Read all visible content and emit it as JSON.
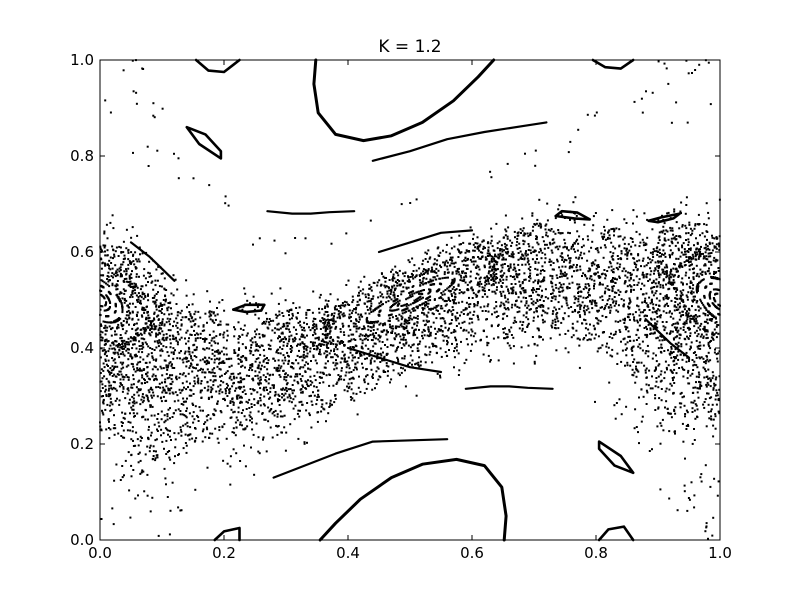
{
  "chart_data": {
    "type": "scatter",
    "title": "K = 1.2",
    "xlabel": "",
    "ylabel": "",
    "xlim": [
      0.0,
      1.0
    ],
    "ylim": [
      0.0,
      1.0
    ],
    "x_ticks": [
      "0.0",
      "0.2",
      "0.4",
      "0.6",
      "0.8",
      "1.0"
    ],
    "y_ticks": [
      "0.0",
      "0.2",
      "0.4",
      "0.6",
      "0.8",
      "1.0"
    ],
    "grid": false,
    "legend": "none",
    "marker_color": "#000000",
    "map": "standard map",
    "parameter": 1.2,
    "series": [
      {
        "kind": "invariant-curve",
        "points": [
          [
            0.355,
            0.0
          ],
          [
            0.38,
            0.035
          ],
          [
            0.42,
            0.085
          ],
          [
            0.47,
            0.13
          ],
          [
            0.52,
            0.158
          ],
          [
            0.575,
            0.168
          ],
          [
            0.62,
            0.155
          ],
          [
            0.648,
            0.11
          ],
          [
            0.655,
            0.05
          ],
          [
            0.652,
            0.0
          ]
        ]
      },
      {
        "kind": "invariant-curve",
        "points": [
          [
            0.635,
            1.0
          ],
          [
            0.61,
            0.965
          ],
          [
            0.57,
            0.915
          ],
          [
            0.52,
            0.87
          ],
          [
            0.47,
            0.842
          ],
          [
            0.425,
            0.832
          ],
          [
            0.38,
            0.845
          ],
          [
            0.352,
            0.89
          ],
          [
            0.345,
            0.95
          ],
          [
            0.348,
            1.0
          ]
        ]
      },
      {
        "kind": "island",
        "points": [
          [
            0.14,
            0.86
          ],
          [
            0.16,
            0.825
          ],
          [
            0.195,
            0.795
          ],
          [
            0.195,
            0.81
          ],
          [
            0.17,
            0.845
          ],
          [
            0.14,
            0.86
          ]
        ]
      },
      {
        "kind": "island",
        "points": [
          [
            0.86,
            0.14
          ],
          [
            0.84,
            0.175
          ],
          [
            0.805,
            0.205
          ],
          [
            0.805,
            0.19
          ],
          [
            0.83,
            0.155
          ],
          [
            0.86,
            0.14
          ]
        ]
      },
      {
        "kind": "island",
        "points": [
          [
            0.215,
            0.48
          ],
          [
            0.235,
            0.49
          ],
          [
            0.265,
            0.49
          ],
          [
            0.26,
            0.478
          ],
          [
            0.235,
            0.475
          ],
          [
            0.215,
            0.48
          ]
        ]
      },
      {
        "kind": "island",
        "points": [
          [
            0.735,
            0.675
          ],
          [
            0.765,
            0.67
          ],
          [
            0.79,
            0.668
          ],
          [
            0.77,
            0.682
          ],
          [
            0.745,
            0.685
          ],
          [
            0.735,
            0.675
          ]
        ]
      },
      {
        "kind": "island",
        "points": [
          [
            0.155,
            1.0
          ],
          [
            0.175,
            0.978
          ],
          [
            0.2,
            0.975
          ],
          [
            0.215,
            0.99
          ],
          [
            0.225,
            1.0
          ]
        ]
      },
      {
        "kind": "island",
        "points": [
          [
            0.795,
            1.0
          ],
          [
            0.815,
            0.985
          ],
          [
            0.84,
            0.982
          ],
          [
            0.86,
            1.0
          ]
        ]
      },
      {
        "kind": "island",
        "points": [
          [
            0.185,
            0.0
          ],
          [
            0.2,
            0.018
          ],
          [
            0.225,
            0.025
          ],
          [
            0.225,
            0.0
          ]
        ]
      },
      {
        "kind": "island",
        "points": [
          [
            0.805,
            0.0
          ],
          [
            0.82,
            0.022
          ],
          [
            0.845,
            0.028
          ],
          [
            0.86,
            0.0
          ]
        ]
      },
      {
        "kind": "island",
        "points": [
          [
            0.885,
            0.665
          ],
          [
            0.905,
            0.672
          ],
          [
            0.935,
            0.68
          ],
          [
            0.925,
            0.67
          ],
          [
            0.9,
            0.662
          ],
          [
            0.885,
            0.665
          ]
        ]
      },
      {
        "kind": "chain",
        "points": [
          [
            0.27,
            0.685
          ],
          [
            0.31,
            0.68
          ],
          [
            0.34,
            0.68
          ],
          [
            0.37,
            0.683
          ],
          [
            0.41,
            0.685
          ]
        ]
      },
      {
        "kind": "chain",
        "points": [
          [
            0.44,
            0.79
          ],
          [
            0.5,
            0.81
          ],
          [
            0.56,
            0.835
          ],
          [
            0.62,
            0.85
          ],
          [
            0.72,
            0.87
          ]
        ]
      },
      {
        "kind": "chain",
        "points": [
          [
            0.59,
            0.315
          ],
          [
            0.63,
            0.32
          ],
          [
            0.66,
            0.32
          ],
          [
            0.69,
            0.317
          ],
          [
            0.73,
            0.315
          ]
        ]
      },
      {
        "kind": "chain",
        "points": [
          [
            0.28,
            0.13
          ],
          [
            0.33,
            0.155
          ],
          [
            0.38,
            0.18
          ],
          [
            0.44,
            0.205
          ],
          [
            0.56,
            0.21
          ]
        ]
      },
      {
        "kind": "chain",
        "points": [
          [
            0.05,
            0.62
          ],
          [
            0.08,
            0.59
          ],
          [
            0.1,
            0.565
          ],
          [
            0.12,
            0.54
          ]
        ]
      },
      {
        "kind": "chain",
        "points": [
          [
            0.95,
            0.38
          ],
          [
            0.92,
            0.41
          ],
          [
            0.9,
            0.435
          ],
          [
            0.88,
            0.46
          ]
        ]
      },
      {
        "kind": "chain",
        "points": [
          [
            0.45,
            0.6
          ],
          [
            0.5,
            0.62
          ],
          [
            0.55,
            0.64
          ],
          [
            0.6,
            0.645
          ]
        ]
      },
      {
        "kind": "chain",
        "points": [
          [
            0.4,
            0.4
          ],
          [
            0.45,
            0.38
          ],
          [
            0.5,
            0.36
          ],
          [
            0.55,
            0.35
          ]
        ]
      },
      {
        "kind": "chaotic-band",
        "count": 6500,
        "seed": 12345
      }
    ]
  }
}
